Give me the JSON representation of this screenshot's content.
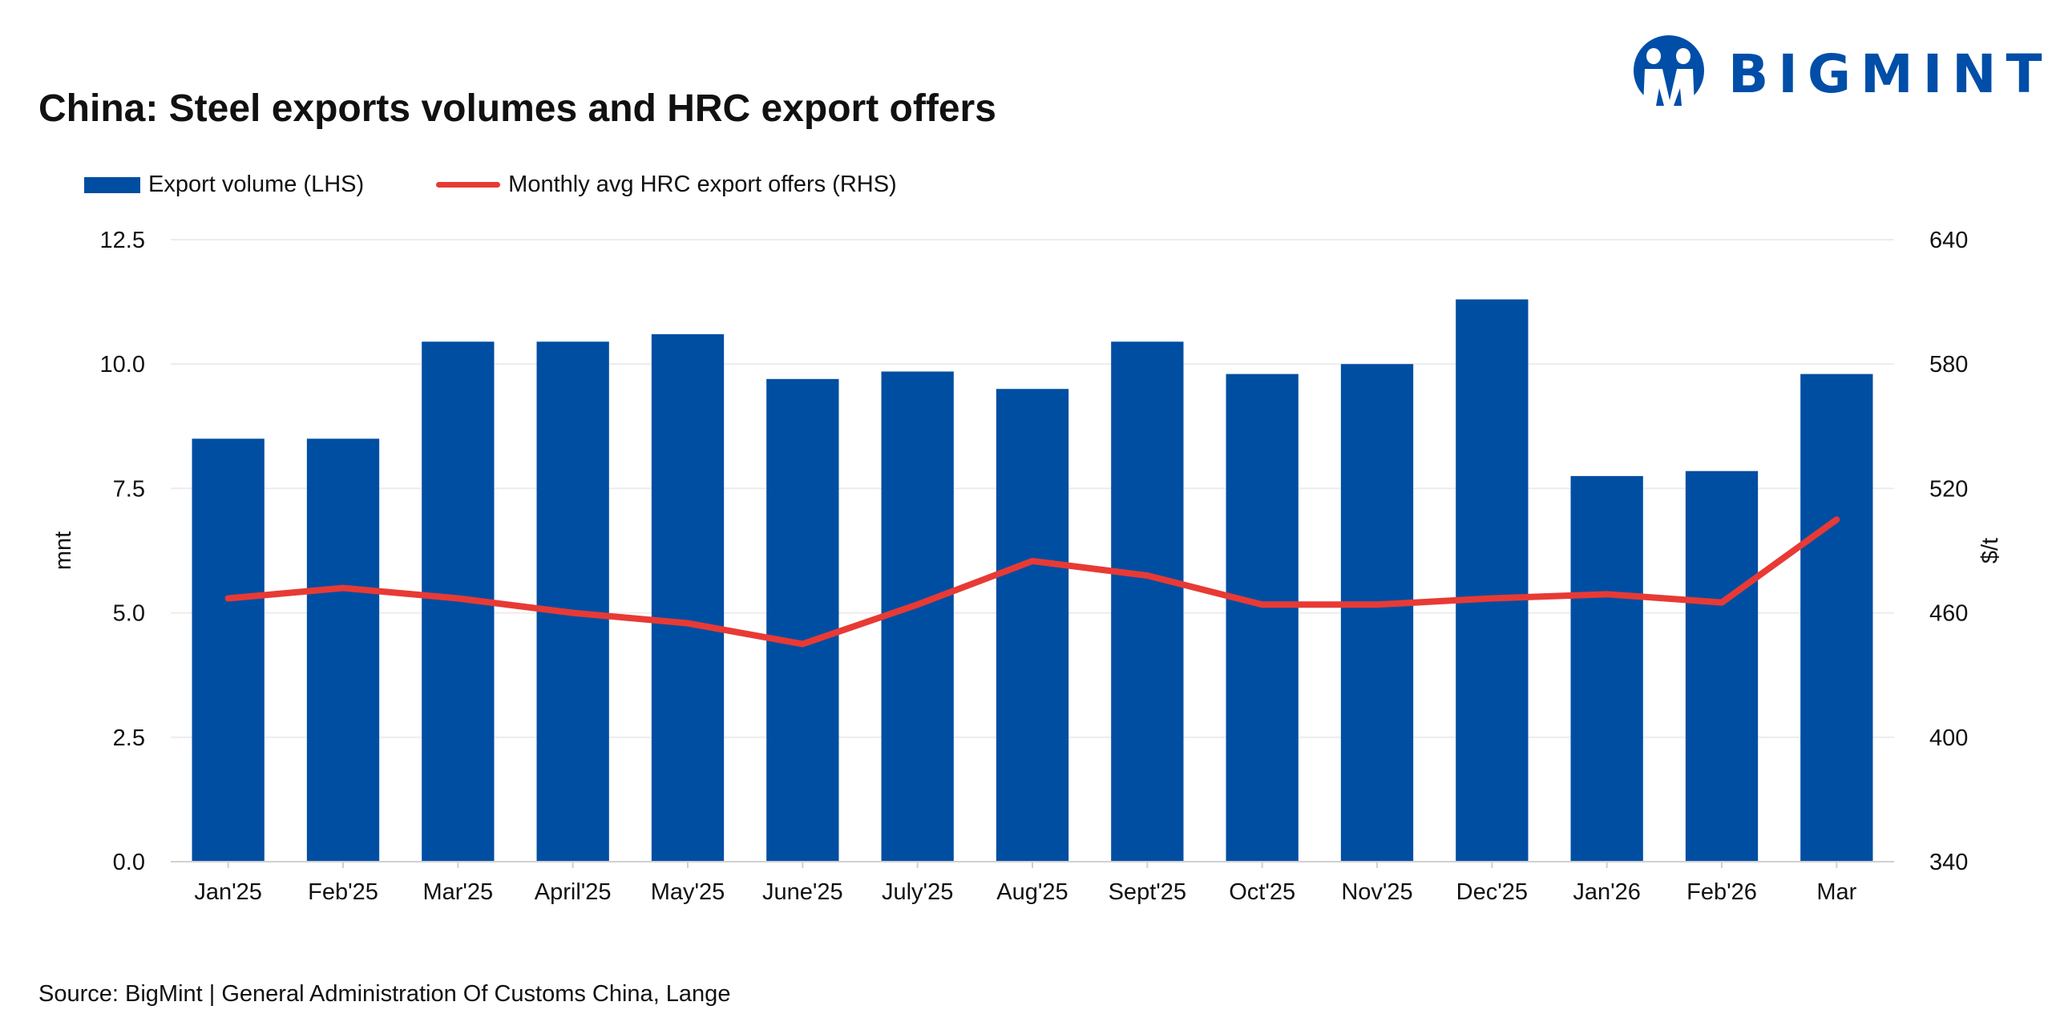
{
  "title": "China: Steel exports volumes and HRC export offers",
  "logo": {
    "text": "BIGMINT",
    "color": "#004EA8",
    "icon": "two-people-circle-logo"
  },
  "source": "Source: BigMint | General Administration Of Customs China, Lange",
  "chart_data": {
    "type": "bar+line",
    "categories": [
      "Jan'25",
      "Feb'25",
      "Mar'25",
      "April'25",
      "May'25",
      "June'25",
      "July'25",
      "Aug'25",
      "Sept'25",
      "Oct'25",
      "Nov'25",
      "Dec'25",
      "Jan'26",
      "Feb'26",
      "Mar"
    ],
    "series": [
      {
        "name": "Export volume (LHS)",
        "type": "bar",
        "axis": "left",
        "color": "#004EA2",
        "values": [
          8.5,
          8.5,
          10.45,
          10.45,
          10.6,
          9.7,
          9.85,
          9.5,
          10.45,
          9.8,
          10.0,
          11.3,
          7.75,
          7.85,
          9.8
        ]
      },
      {
        "name": "Monthly avg HRC export offers (RHS)",
        "type": "line",
        "axis": "right",
        "color": "#E83A35",
        "values": [
          467,
          472,
          467,
          460,
          455,
          445,
          464,
          485,
          478,
          464,
          464,
          467,
          469,
          465,
          505
        ]
      }
    ],
    "ylabel": "mnt",
    "y2label": "$/t",
    "ylim": [
      0,
      12.5
    ],
    "y2lim": [
      340,
      640
    ],
    "yticks": [
      "0.0",
      "2.5",
      "5.0",
      "7.5",
      "10.0",
      "12.5"
    ],
    "y2ticks": [
      "340",
      "400",
      "460",
      "520",
      "580",
      "640"
    ],
    "grid": true,
    "legend": "top-left"
  }
}
